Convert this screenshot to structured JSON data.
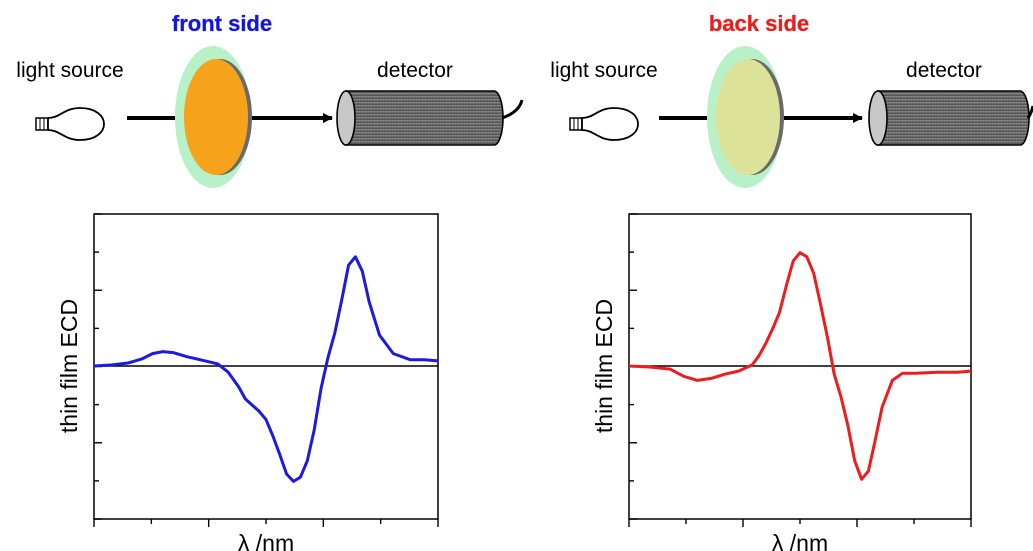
{
  "panels": [
    {
      "title": "front side",
      "title_color": "#1515d8",
      "source_label": "light source",
      "detector_label": "detector",
      "film_color": "#f7a21b",
      "film_edge_color": "#b8f0c8",
      "chart": {
        "ylabel": "thin film ECD",
        "xlabel": "λ /nm",
        "line_color": "#1a1ae0",
        "x": [
          0,
          0.05,
          0.1,
          0.14,
          0.17,
          0.2,
          0.23,
          0.27,
          0.31,
          0.36,
          0.39,
          0.42,
          0.44,
          0.46,
          0.48,
          0.5,
          0.52,
          0.54,
          0.56,
          0.58,
          0.6,
          0.62,
          0.64,
          0.66,
          0.68,
          0.7,
          0.72,
          0.74,
          0.76,
          0.78,
          0.8,
          0.83,
          0.87,
          0.92,
          0.96,
          1.0
        ],
        "y": [
          0,
          0.01,
          0.03,
          0.07,
          0.12,
          0.14,
          0.13,
          0.09,
          0.06,
          0.02,
          -0.06,
          -0.2,
          -0.32,
          -0.38,
          -0.44,
          -0.52,
          -0.68,
          -0.86,
          -1.05,
          -1.12,
          -1.08,
          -0.92,
          -0.62,
          -0.22,
          0.08,
          0.32,
          0.64,
          0.98,
          1.06,
          0.92,
          0.62,
          0.3,
          0.12,
          0.06,
          0.06,
          0.05
        ]
      }
    },
    {
      "title": "back side",
      "title_color": "#e61e1e",
      "source_label": "light source",
      "detector_label": "detector",
      "film_color": "#dde29a",
      "film_edge_color": "#b8f0c8",
      "chart": {
        "ylabel": "thin film ECD",
        "xlabel": "λ /nm",
        "line_color": "#ee1c1c",
        "x": [
          0,
          0.06,
          0.12,
          0.16,
          0.2,
          0.24,
          0.28,
          0.32,
          0.36,
          0.38,
          0.4,
          0.42,
          0.44,
          0.46,
          0.48,
          0.5,
          0.52,
          0.54,
          0.56,
          0.58,
          0.6,
          0.62,
          0.64,
          0.66,
          0.68,
          0.7,
          0.72,
          0.74,
          0.77,
          0.8,
          0.84,
          0.9,
          0.96,
          1.0
        ],
        "y": [
          0,
          -0.01,
          -0.03,
          -0.1,
          -0.14,
          -0.12,
          -0.08,
          -0.05,
          0.01,
          0.1,
          0.22,
          0.36,
          0.52,
          0.78,
          1.02,
          1.1,
          1.06,
          0.9,
          0.6,
          0.28,
          -0.08,
          -0.3,
          -0.58,
          -0.92,
          -1.1,
          -1.02,
          -0.72,
          -0.4,
          -0.14,
          -0.07,
          -0.07,
          -0.06,
          -0.06,
          -0.05
        ]
      }
    }
  ]
}
